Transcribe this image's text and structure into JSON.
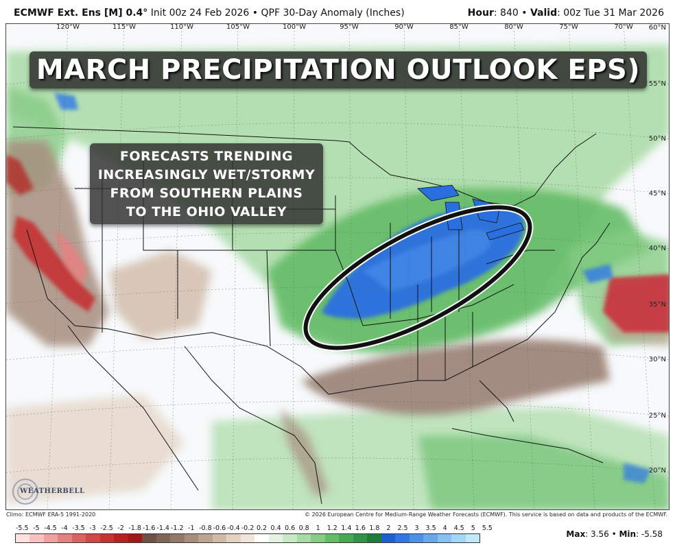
{
  "header": {
    "model_label": "ECMWF Ext. Ens [M] 0.4",
    "init_text": "Init 00z 24 Feb 2026",
    "product_text": "QPF 30-Day Anomaly (Inches)",
    "hour_label": "Hour",
    "hour_value": ": 840",
    "valid_label": "Valid",
    "valid_value": ": 00z Tue 31 Mar 2026"
  },
  "map": {
    "lon_labels": [
      "120°W",
      "115°W",
      "110°W",
      "105°W",
      "100°W",
      "95°W",
      "90°W",
      "85°W",
      "80°W",
      "75°W",
      "70°W"
    ],
    "lat_labels": [
      "60°N",
      "55°N",
      "50°N",
      "45°N",
      "40°N",
      "35°N",
      "30°N",
      "25°N",
      "20°N"
    ],
    "banner_text": "MARCH PRECIPITATION OUTLOOK EPS)",
    "callout_lines": [
      "FORECASTS TRENDING",
      "INCREASINGLY WET/STORMY",
      "FROM SOUTHERN PLAINS",
      "TO THE OHIO VALLEY"
    ],
    "logo_text": "WEATHERBELL"
  },
  "footer": {
    "climo_text": "Climo: ECMWF ERA-5 1991-2020",
    "copyright_text": "© 2026 European Centre for Medium-Range Weather Forecasts (ECMWF). This service is based on data and products of the ECMWF.",
    "max_label": "Max",
    "max_value": ": 3.56",
    "sep": " • ",
    "min_label": "Min",
    "min_value": ": -5.58"
  },
  "legend": {
    "labels": [
      "-5.5",
      "-5",
      "-4.5",
      "-4",
      "-3.5",
      "-3",
      "-2.5",
      "-2",
      "-1.8",
      "-1.6",
      "-1.4",
      "-1.2",
      "-1",
      "-0.8",
      "-0.6",
      "-0.4",
      "-0.2",
      "0.2",
      "0.4",
      "0.6",
      "0.8",
      "1",
      "1.2",
      "1.4",
      "1.6",
      "1.8",
      "2",
      "2.5",
      "3",
      "3.5",
      "4",
      "4.5",
      "5",
      "5.5"
    ],
    "colors": [
      "#fde0e0",
      "#f8c0c0",
      "#f1a0a0",
      "#e88080",
      "#de6060",
      "#d24848",
      "#c43232",
      "#b52020",
      "#a01818",
      "#6e5248",
      "#7f6458",
      "#93786a",
      "#a78d7e",
      "#bca392",
      "#d0baa8",
      "#e2d2c2",
      "#f0e6dc",
      "#ffffff",
      "#e5f3e2",
      "#c9e8c4",
      "#a8dba4",
      "#86cc84",
      "#64bc67",
      "#45a955",
      "#2e9446",
      "#1f7d3c",
      "#1b5fd0",
      "#2f78e6",
      "#4a90ec",
      "#67a8f0",
      "#86c0f4",
      "#a4d6f7",
      "#c2e8fa"
    ]
  },
  "colors": {
    "wet_blue": "#2a6fe0",
    "wet_green": "#5fb85f",
    "dry_brown": "#9c8374",
    "dry_red": "#c8323a",
    "banner_bg": "#2b2b2b"
  }
}
